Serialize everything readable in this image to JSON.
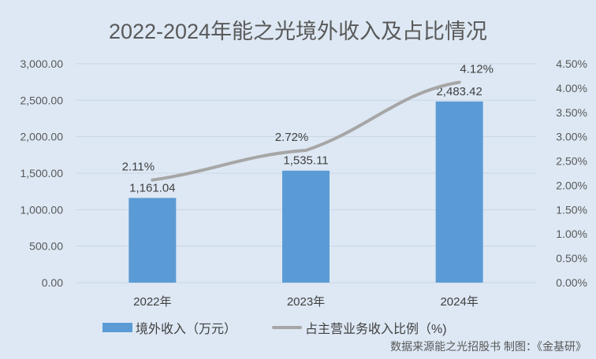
{
  "title": "2022-2024年能之光境外收入及占比情况",
  "legend": {
    "bar_label": "境外收入（万元）",
    "line_label": "占主营业务收入比例（%)"
  },
  "source": "数据来源能之光招股书   制图：《金基研》",
  "colors": {
    "bar": "#5b9bd5",
    "line": "#a6a6a6",
    "background": "#dde8f4",
    "grid": "#c9d6e3"
  },
  "chart_data": {
    "type": "bar+line",
    "title": "2022-2024年能之光境外收入及占比情况",
    "categories": [
      "2022年",
      "2023年",
      "2024年"
    ],
    "series": [
      {
        "name": "境外收入（万元）",
        "type": "bar",
        "axis": "left",
        "values": [
          1161.04,
          1535.11,
          2483.42
        ],
        "labels": [
          "1,161.04",
          "1,535.11",
          "2,483.42"
        ]
      },
      {
        "name": "占主营业务收入比例（%)",
        "type": "line",
        "axis": "right",
        "values": [
          2.11,
          2.72,
          4.12
        ],
        "labels": [
          "2.11%",
          "2.72%",
          "4.12%"
        ]
      }
    ],
    "y_left": {
      "ylim": [
        0,
        3000
      ],
      "ticks": [
        "0.00",
        "500.00",
        "1,000.00",
        "1,500.00",
        "2,000.00",
        "2,500.00",
        "3,000.00"
      ]
    },
    "y_right": {
      "ylim": [
        0,
        4.5
      ],
      "ticks": [
        "0.00%",
        "0.50%",
        "1.00%",
        "1.50%",
        "2.00%",
        "2.50%",
        "3.00%",
        "3.50%",
        "4.00%",
        "4.50%"
      ]
    },
    "grid": true,
    "legend_position": "bottom"
  }
}
